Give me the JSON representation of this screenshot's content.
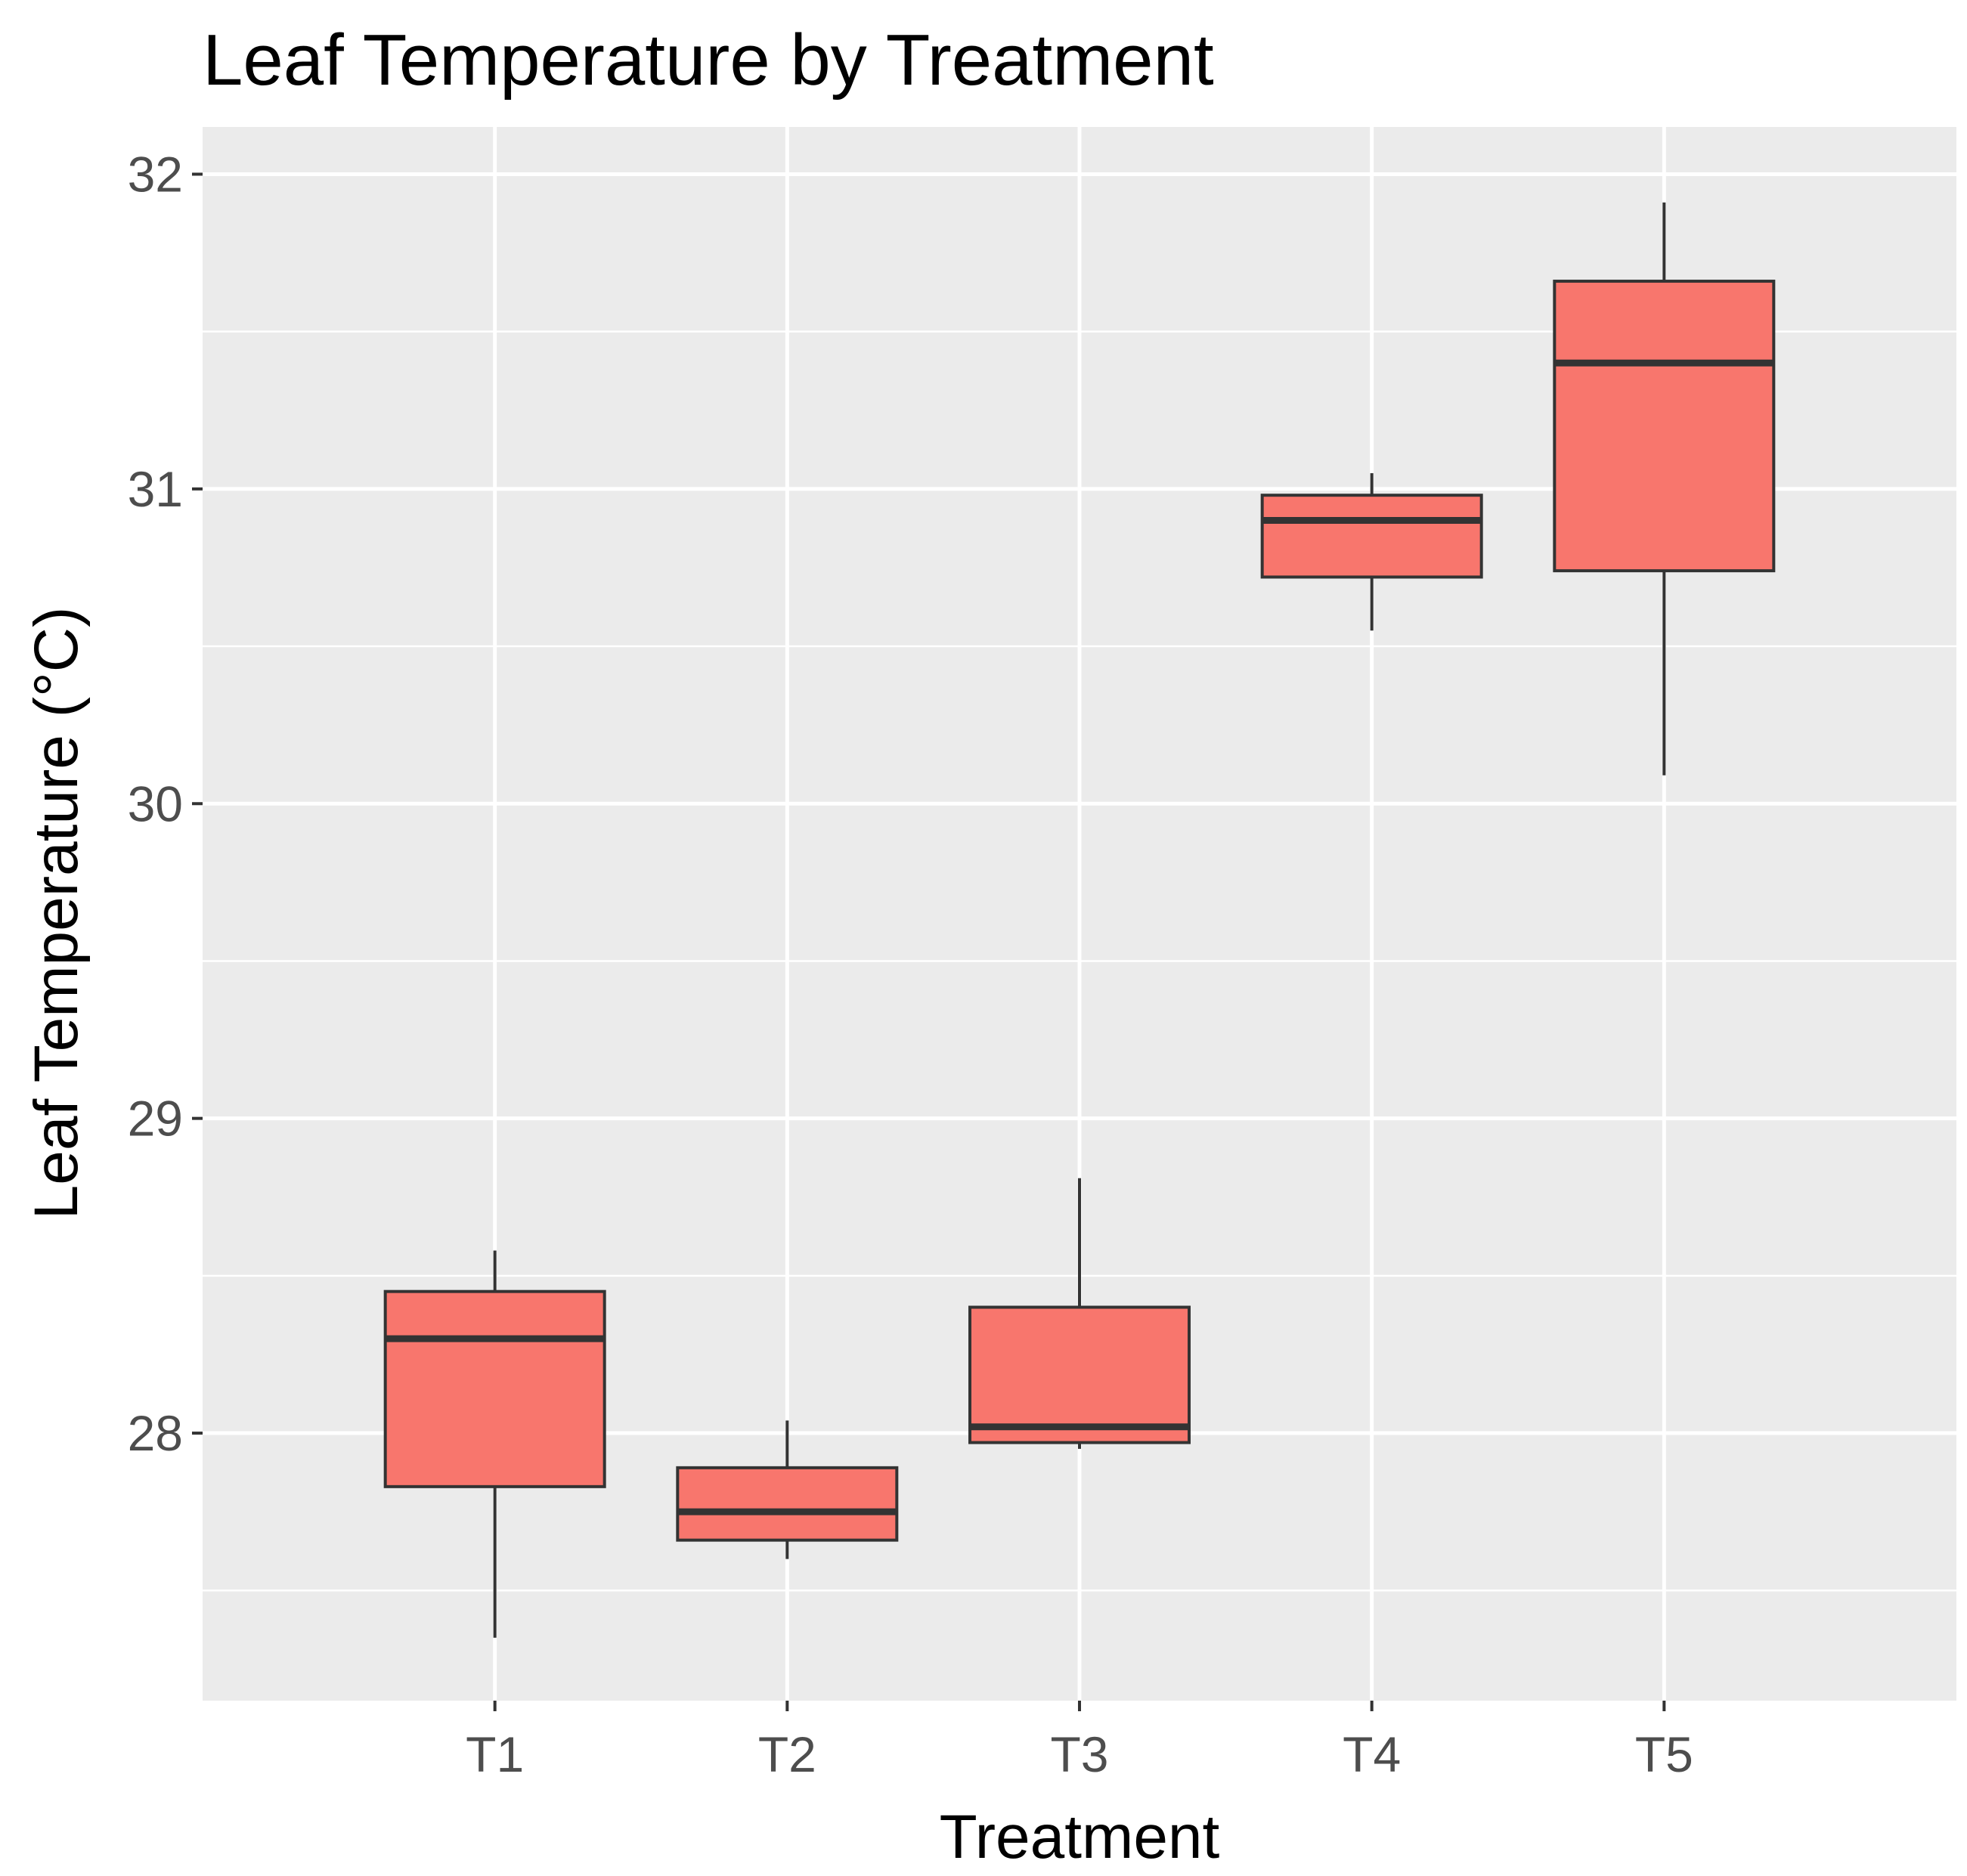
{
  "chart_data": {
    "type": "boxplot",
    "title": "Leaf Temperature by Treatment",
    "xlabel": "Treatment",
    "ylabel": "Leaf Temperature (°C)",
    "categories": [
      "T1",
      "T2",
      "T3",
      "T4",
      "T5"
    ],
    "ylim": [
      27.15,
      32.15
    ],
    "yticks": [
      28,
      29,
      30,
      31,
      32
    ],
    "ytick_labels": [
      "28",
      "29",
      "30",
      "31",
      "32"
    ],
    "grid": true,
    "legend": "none",
    "boxes": [
      {
        "name": "T1",
        "whisker_low": 27.35,
        "q1": 27.83,
        "median": 28.3,
        "q3": 28.45,
        "whisker_high": 28.58
      },
      {
        "name": "T2",
        "whisker_low": 27.6,
        "q1": 27.66,
        "median": 27.75,
        "q3": 27.89,
        "whisker_high": 28.04
      },
      {
        "name": "T3",
        "whisker_low": 27.95,
        "q1": 27.97,
        "median": 28.02,
        "q3": 28.4,
        "whisker_high": 28.81
      },
      {
        "name": "T4",
        "whisker_low": 30.55,
        "q1": 30.72,
        "median": 30.9,
        "q3": 30.98,
        "whisker_high": 31.05
      },
      {
        "name": "T5",
        "whisker_low": 30.09,
        "q1": 30.74,
        "median": 31.4,
        "q3": 31.66,
        "whisker_high": 31.91
      }
    ],
    "colors": {
      "box_fill": "#f8766d",
      "box_stroke": "#333333",
      "panel_bg": "#ebebeb",
      "grid": "#ffffff",
      "tick_text": "#4d4d4d",
      "tick_mark": "#333333"
    }
  }
}
